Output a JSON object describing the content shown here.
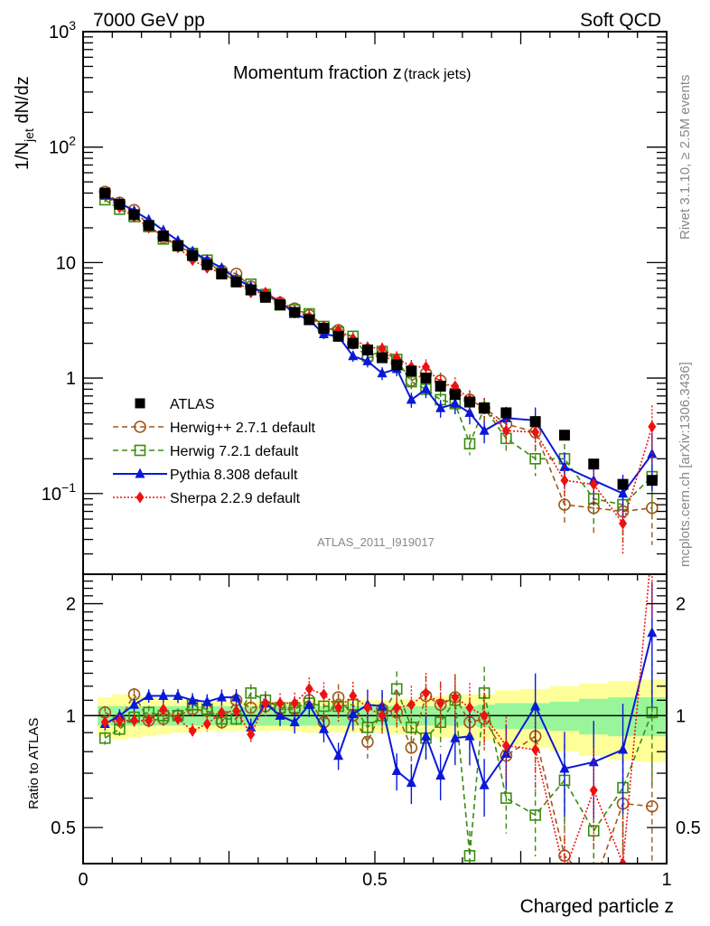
{
  "header": {
    "left": "7000 GeV pp",
    "right": "Soft QCD"
  },
  "side_labels": {
    "rivet": "Rivet 3.1.10, ≥ 2.5M events",
    "mcplots": "mcplots.cern.ch [arXiv:1306.3436]"
  },
  "chart_data": [
    {
      "type": "scatter",
      "panel": "main",
      "title": "Momentum fraction z",
      "title_sub": "(track jets)",
      "ylabel_main": "1/N",
      "ylabel_sub": "jet",
      "ylabel_tail": " dN/dz",
      "yscale": "log",
      "ylim": [
        0.02,
        1000
      ],
      "xlim": [
        0,
        1
      ],
      "ytick_labels": [
        {
          "value": 1000,
          "base": "10",
          "exp": "3"
        },
        {
          "value": 100,
          "base": "10",
          "exp": "2"
        },
        {
          "value": 10,
          "base": "10",
          "exp": ""
        },
        {
          "value": 1,
          "base": "1",
          "exp": ""
        },
        {
          "value": 0.1,
          "base": "10",
          "exp": "−1"
        }
      ],
      "analysis_label": "ATLAS_2011_I919017",
      "legend_position": "bottom-left",
      "x": [
        0.0375,
        0.0625,
        0.0875,
        0.1125,
        0.1375,
        0.1625,
        0.1875,
        0.2125,
        0.2375,
        0.2625,
        0.2875,
        0.3125,
        0.3375,
        0.3625,
        0.3875,
        0.4125,
        0.4375,
        0.4625,
        0.4875,
        0.5125,
        0.5375,
        0.5625,
        0.5875,
        0.6125,
        0.6375,
        0.6625,
        0.6875,
        0.725,
        0.775,
        0.825,
        0.875,
        0.925,
        0.975
      ],
      "series": [
        {
          "name": "ATLAS",
          "color": "#000000",
          "marker": "square-filled",
          "line": "none",
          "values": [
            40,
            32,
            26,
            21,
            17,
            14,
            11.5,
            9.6,
            8.0,
            6.8,
            5.8,
            5.0,
            4.3,
            3.7,
            3.2,
            2.7,
            2.3,
            2.0,
            1.75,
            1.5,
            1.3,
            1.15,
            1.0,
            0.85,
            0.72,
            0.62,
            0.55,
            0.5,
            0.42,
            0.32,
            0.18,
            0.12,
            0.13
          ]
        },
        {
          "name": "Herwig++ 2.7.1 default",
          "color": "#a0571b",
          "marker": "circle-open",
          "line": "dashed",
          "values": [
            41,
            33,
            28.5,
            21,
            16.5,
            14,
            12,
            10,
            8.5,
            8.0,
            6.2,
            5.2,
            4.5,
            4.0,
            3.5,
            2.6,
            2.6,
            2.0,
            1.5,
            1.58,
            1.35,
            0.95,
            1.1,
            0.95,
            0.75,
            0.65,
            0.55,
            0.4,
            0.34,
            0.08,
            0.075,
            0.07,
            0.075
          ]
        },
        {
          "name": "Herwig 7.2.1 default",
          "color": "#3a8c10",
          "marker": "square-open",
          "line": "dashed",
          "values": [
            35,
            29,
            25,
            20.5,
            16,
            14,
            12,
            10.5,
            8.0,
            7.0,
            6.5,
            5.3,
            4.3,
            3.9,
            3.6,
            2.8,
            2.5,
            2.3,
            1.55,
            1.7,
            1.45,
            0.93,
            0.8,
            0.65,
            0.6,
            0.27,
            0.55,
            0.3,
            0.2,
            0.2,
            0.09,
            0.08,
            0.14
          ]
        },
        {
          "name": "Pythia 8.308 default",
          "color": "#0a19d6",
          "marker": "triangle-filled",
          "line": "solid",
          "values": [
            38,
            33,
            28,
            23.5,
            19,
            15.5,
            12.5,
            10.5,
            9.0,
            7.2,
            6.2,
            5.4,
            4.6,
            3.6,
            3.2,
            2.4,
            2.3,
            1.55,
            1.4,
            1.1,
            1.2,
            0.65,
            0.8,
            0.55,
            0.6,
            0.5,
            0.35,
            0.45,
            0.43,
            0.17,
            0.13,
            0.1,
            0.22
          ]
        },
        {
          "name": "Sherpa 2.2.9 default",
          "color": "#ee1111",
          "marker": "diamond-filled",
          "line": "dotted",
          "values": [
            39,
            30,
            25,
            20,
            17.5,
            13.5,
            10.5,
            9.0,
            8.2,
            7.0,
            5.5,
            5.5,
            4.6,
            3.8,
            3.4,
            2.8,
            2.6,
            2.2,
            1.85,
            1.8,
            1.5,
            1.25,
            1.25,
            0.9,
            0.85,
            0.65,
            0.55,
            0.35,
            0.34,
            0.13,
            0.12,
            0.055,
            0.38
          ]
        }
      ]
    },
    {
      "type": "scatter",
      "panel": "ratio",
      "ylabel": "Ratio to ATLAS",
      "xlabel": "Charged particle z",
      "ylim": [
        0.4,
        2.4
      ],
      "xlim": [
        0,
        1
      ],
      "ytick_labels": [
        "0.5",
        "1",
        "2"
      ],
      "ytick_values": [
        0.5,
        1,
        2
      ],
      "xtick_labels": [
        "0",
        "0.5",
        "1"
      ],
      "xtick_values": [
        0,
        0.5,
        1
      ],
      "band_inner": [
        0.06,
        0.06,
        0.06,
        0.06,
        0.06,
        0.06,
        0.06,
        0.06,
        0.06,
        0.06,
        0.06,
        0.06,
        0.06,
        0.06,
        0.06,
        0.06,
        0.06,
        0.06,
        0.06,
        0.06,
        0.06,
        0.06,
        0.06,
        0.06,
        0.06,
        0.06,
        0.07,
        0.08,
        0.08,
        0.09,
        0.11,
        0.12,
        0.12
      ],
      "band_outer": [
        0.12,
        0.14,
        0.13,
        0.12,
        0.11,
        0.1,
        0.1,
        0.09,
        0.09,
        0.09,
        0.09,
        0.09,
        0.09,
        0.09,
        0.1,
        0.1,
        0.1,
        0.1,
        0.1,
        0.1,
        0.11,
        0.11,
        0.12,
        0.13,
        0.13,
        0.14,
        0.14,
        0.17,
        0.18,
        0.2,
        0.22,
        0.24,
        0.25
      ],
      "series": [
        {
          "name": "Herwig++ 2.7.1 default",
          "values": [
            1.02,
            0.97,
            1.14,
            0.97,
            0.98,
            1.0,
            1.04,
            1.03,
            0.96,
            1.1,
            1.05,
            1.06,
            1.04,
            1.04,
            1.1,
            0.96,
            1.12,
            1.0,
            0.85,
            1.04,
            1.02,
            0.82,
            1.13,
            1.07,
            1.12,
            0.96,
            0.98,
            0.78,
            0.88,
            0.42,
            0.35,
            0.58,
            0.57
          ]
        },
        {
          "name": "Herwig 7.2.1 default",
          "values": [
            0.87,
            0.92,
            0.99,
            1.02,
            1.0,
            1.0,
            1.07,
            1.04,
            0.98,
            0.98,
            1.15,
            1.1,
            1.05,
            1.05,
            1.08,
            1.06,
            1.06,
            1.07,
            0.93,
            1.0,
            1.18,
            0.93,
            0.87,
            0.96,
            1.1,
            0.42,
            1.15,
            0.6,
            0.54,
            0.67,
            0.49,
            0.64,
            1.02
          ]
        },
        {
          "name": "Pythia 8.308 default",
          "values": [
            0.95,
            1.0,
            1.07,
            1.13,
            1.13,
            1.13,
            1.1,
            1.09,
            1.12,
            1.12,
            0.93,
            1.08,
            1.0,
            0.96,
            1.07,
            0.92,
            0.78,
            1.01,
            1.07,
            1.06,
            0.71,
            0.66,
            0.88,
            0.69,
            0.87,
            0.88,
            0.65,
            0.79,
            1.06,
            0.72,
            0.75,
            0.81,
            1.67
          ]
        },
        {
          "name": "Sherpa 2.2.9 default",
          "values": [
            0.96,
            0.97,
            0.97,
            0.97,
            1.04,
            0.98,
            0.91,
            0.95,
            1.02,
            1.03,
            0.89,
            1.08,
            1.08,
            1.08,
            1.18,
            1.14,
            1.05,
            1.13,
            1.05,
            1.0,
            1.05,
            1.07,
            1.15,
            1.08,
            1.12,
            1.05,
            1.0,
            0.83,
            0.81,
            0.38,
            0.63,
            0.4,
            2.9
          ]
        }
      ]
    }
  ]
}
